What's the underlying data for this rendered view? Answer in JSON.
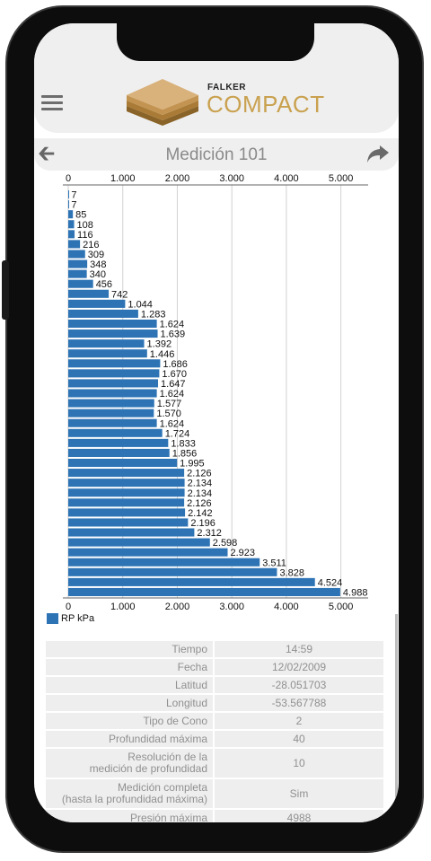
{
  "header": {
    "brand_top": "FALKER",
    "brand_main": "COMPACT",
    "title": "Medición 101"
  },
  "icons": [
    "menu-icon",
    "falker-logo",
    "back-arrow-icon",
    "share-icon"
  ],
  "colors": {
    "bar": "#2e74b5",
    "brand_gold": "#c9a14f",
    "panel": "#efefef"
  },
  "chart_data": {
    "type": "bar",
    "orientation": "horizontal",
    "xlim": [
      0,
      5500
    ],
    "x_ticks": [
      "0",
      "1.000",
      "2.000",
      "3.000",
      "4.000",
      "5.000"
    ],
    "grid": true,
    "legend_position": "bottom-left",
    "series": [
      {
        "name": "RP kPa",
        "values": [
          7,
          7,
          85,
          108,
          116,
          216,
          309,
          348,
          340,
          456,
          742,
          1044,
          1283,
          1624,
          1639,
          1392,
          1446,
          1686,
          1670,
          1647,
          1624,
          1577,
          1570,
          1624,
          1724,
          1833,
          1856,
          1995,
          2126,
          2134,
          2134,
          2126,
          2142,
          2196,
          2312,
          2598,
          2923,
          3511,
          3828,
          4524,
          4988
        ],
        "labels": [
          "7",
          "7",
          "85",
          "108",
          "116",
          "216",
          "309",
          "348",
          "340",
          "456",
          "742",
          "1.044",
          "1.283",
          "1.624",
          "1.639",
          "1.392",
          "1.446",
          "1.686",
          "1.670",
          "1.647",
          "1.624",
          "1.577",
          "1.570",
          "1.624",
          "1.724",
          "1.833",
          "1.856",
          "1.995",
          "2.126",
          "2.134",
          "2.134",
          "2.126",
          "2.142",
          "2.196",
          "2.312",
          "2.598",
          "2.923",
          "3.511",
          "3.828",
          "4.524",
          "4.988"
        ]
      }
    ]
  },
  "info_table": [
    {
      "label": "Tiempo",
      "value": "14:59"
    },
    {
      "label": "Fecha",
      "value": "12/02/2009"
    },
    {
      "label": "Latitud",
      "value": "-28.051703"
    },
    {
      "label": "Longitud",
      "value": "-53.567788"
    },
    {
      "label": "Tipo de Cono",
      "value": "2"
    },
    {
      "label": "Profundidad máxima",
      "value": "40"
    },
    {
      "label": "Resolución de la\nmedición de profundidad",
      "value": "10"
    },
    {
      "label": "Medición completa\n(hasta la profundidad máxima)",
      "value": "Sim"
    },
    {
      "label": "Presión máxima",
      "value": "4988"
    }
  ]
}
